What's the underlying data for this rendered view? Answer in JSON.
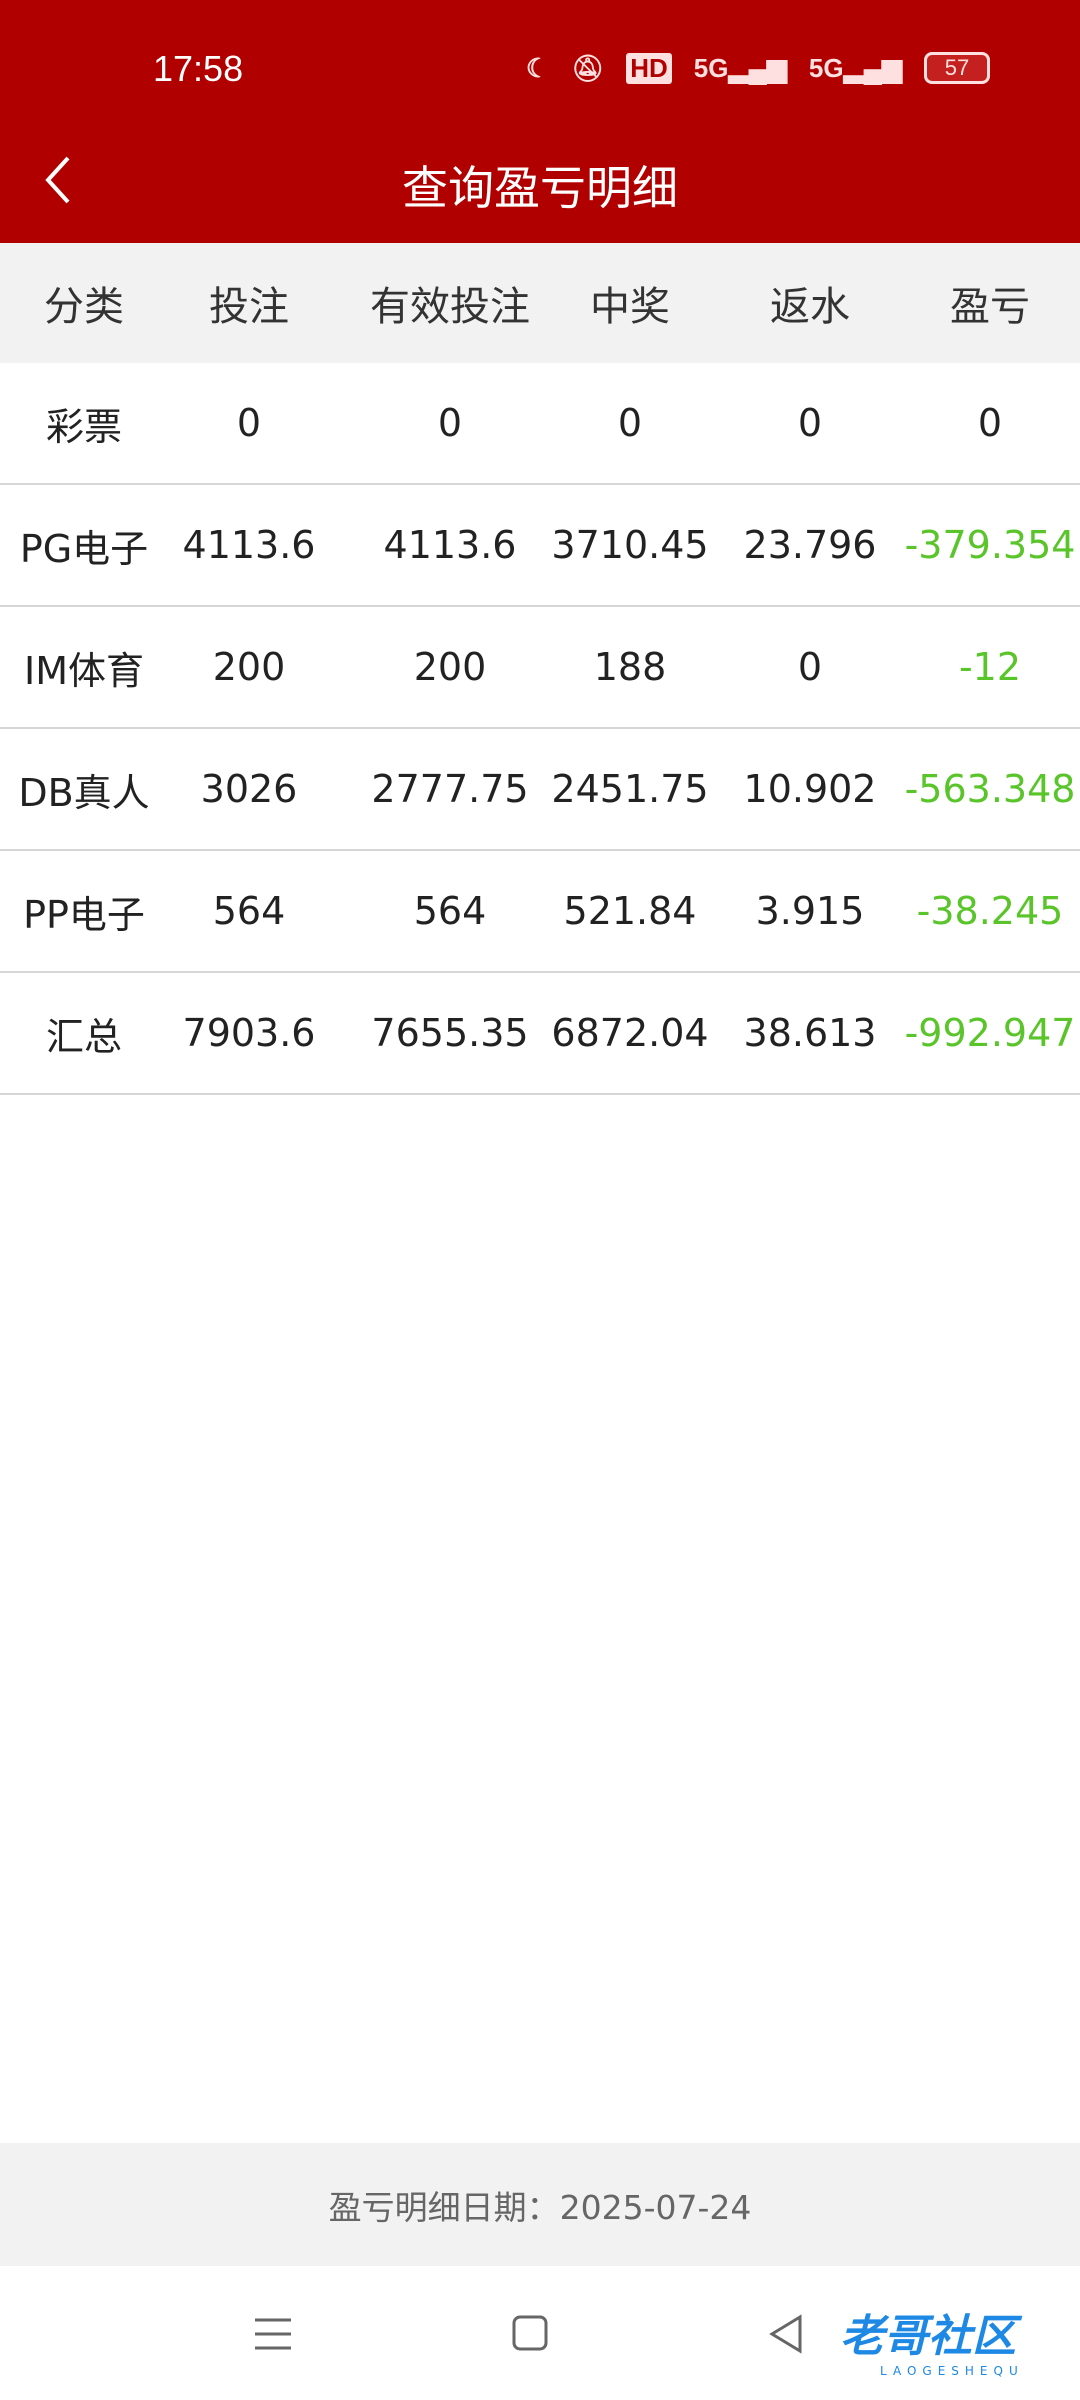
{
  "status": {
    "time": "17:58",
    "battery": "57",
    "network": "5G",
    "hd": "HD"
  },
  "header": {
    "title": "查询盈亏明细"
  },
  "table": {
    "columns": [
      "分类",
      "投注",
      "有效投注",
      "中奖",
      "返水",
      "盈亏"
    ],
    "rows": [
      [
        "彩票",
        "0",
        "0",
        "0",
        "0",
        "0"
      ],
      [
        "PG电子",
        "4113.6",
        "4113.6",
        "3710.45",
        "23.796",
        "-379.354"
      ],
      [
        "IM体育",
        "200",
        "200",
        "188",
        "0",
        "-12"
      ],
      [
        "DB真人",
        "3026",
        "2777.75",
        "2451.75",
        "10.902",
        "-563.348"
      ],
      [
        "PP电子",
        "564",
        "564",
        "521.84",
        "3.915",
        "-38.245"
      ],
      [
        "汇总",
        "7903.6",
        "7655.35",
        "6872.04",
        "38.613",
        "-992.947"
      ]
    ]
  },
  "footer": {
    "date_label": "盈亏明细日期：2025-07-24"
  },
  "watermark": {
    "text": "老哥社区",
    "sub": "LAOGESHEQU"
  },
  "colors": {
    "header": "#b00000",
    "negative": "#5ac52a"
  }
}
